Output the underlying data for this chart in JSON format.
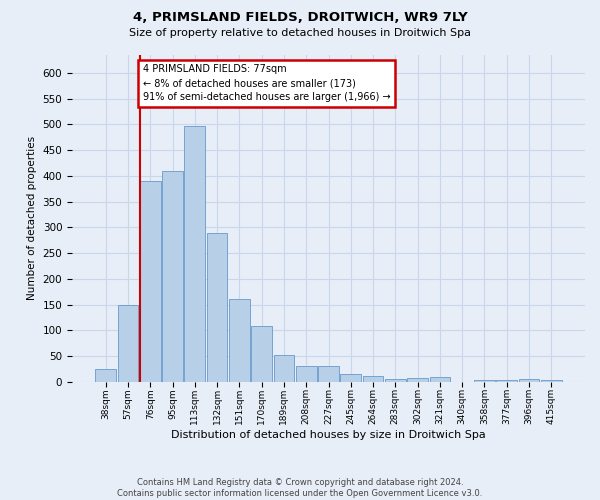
{
  "title": "4, PRIMSLAND FIELDS, DROITWICH, WR9 7LY",
  "subtitle": "Size of property relative to detached houses in Droitwich Spa",
  "xlabel": "Distribution of detached houses by size in Droitwich Spa",
  "ylabel": "Number of detached properties",
  "footer_line1": "Contains HM Land Registry data © Crown copyright and database right 2024.",
  "footer_line2": "Contains public sector information licensed under the Open Government Licence v3.0.",
  "bar_labels": [
    "38sqm",
    "57sqm",
    "76sqm",
    "95sqm",
    "113sqm",
    "132sqm",
    "151sqm",
    "170sqm",
    "189sqm",
    "208sqm",
    "227sqm",
    "245sqm",
    "264sqm",
    "283sqm",
    "302sqm",
    "321sqm",
    "340sqm",
    "358sqm",
    "377sqm",
    "396sqm",
    "415sqm"
  ],
  "bar_values": [
    25,
    150,
    390,
    410,
    498,
    290,
    160,
    108,
    53,
    30,
    30,
    16,
    12,
    5,
    8,
    10,
    0,
    4,
    3,
    5,
    3
  ],
  "bar_color": "#b8cfe8",
  "bar_edge_color": "#6699cc",
  "grid_color": "#c8d8ea",
  "background_color": "#e8eef8",
  "annotation_bg": "#ffffff",
  "annotation_border": "#cc0000",
  "marker_color": "#cc0000",
  "annotation_text_line1": "4 PRIMSLAND FIELDS: 77sqm",
  "annotation_text_line2": "← 8% of detached houses are smaller (173)",
  "annotation_text_line3": "91% of semi-detached houses are larger (1,966) →",
  "ylim_max": 635,
  "yticks": [
    0,
    50,
    100,
    150,
    200,
    250,
    300,
    350,
    400,
    450,
    500,
    550,
    600
  ]
}
